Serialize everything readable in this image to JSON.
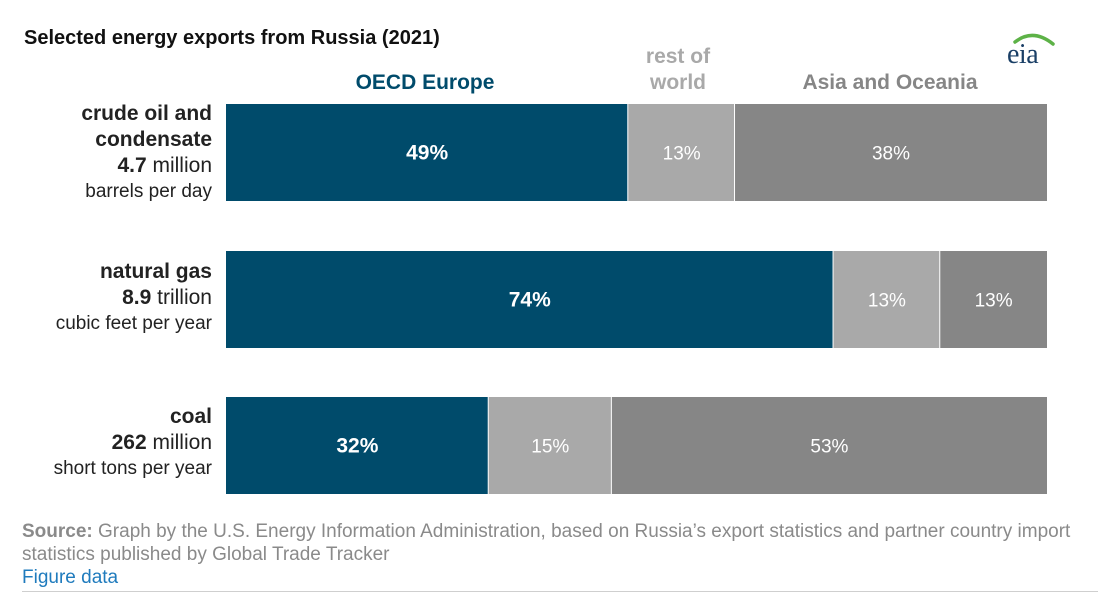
{
  "colors": {
    "oecd_europe": "#004B6B",
    "rest_of_world": "#A9A9A9",
    "asia_oceania": "#868686",
    "logo_arc": "#5db247"
  },
  "logo_text": "eia",
  "chart_data": {
    "type": "bar",
    "orientation": "horizontal",
    "stacked": true,
    "title": "Selected energy exports from Russia (2021)",
    "xlim": [
      0,
      100
    ],
    "grid": false,
    "legend_placement": "top",
    "categories": [
      "crude oil and condensate",
      "natural gas",
      "coal"
    ],
    "category_amounts": [
      {
        "value": "4.7",
        "scale": "million",
        "unit": "barrels per day"
      },
      {
        "value": "8.9",
        "scale": "trillion",
        "unit": "cubic feet per year"
      },
      {
        "value": "262",
        "scale": "million",
        "unit": "short tons per year"
      }
    ],
    "series": [
      {
        "name": "OECD Europe",
        "values": [
          49,
          74,
          32
        ],
        "labels": [
          "49%",
          "74%",
          "32%"
        ]
      },
      {
        "name": "rest of world",
        "values": [
          13,
          13,
          15
        ],
        "labels": [
          "13%",
          "13%",
          "15%"
        ]
      },
      {
        "name": "Asia and Oceania",
        "values": [
          38,
          13,
          53
        ],
        "labels": [
          "38%",
          "13%",
          "53%"
        ]
      }
    ]
  },
  "legend": {
    "oecd_europe": "OECD Europe",
    "rest_of_world_line1": "rest of",
    "rest_of_world_line2": "world",
    "asia_oceania": "Asia and Oceania"
  },
  "labels": {
    "crude_line1": "crude oil and",
    "crude_line2": "condensate"
  },
  "footer": {
    "source_label": "Source:",
    "source_text": " Graph by the U.S. Energy Information Administration, based on Russia’s export statistics and partner country import statistics published by Global Trade Tracker",
    "figure_data_link": "Figure data"
  }
}
